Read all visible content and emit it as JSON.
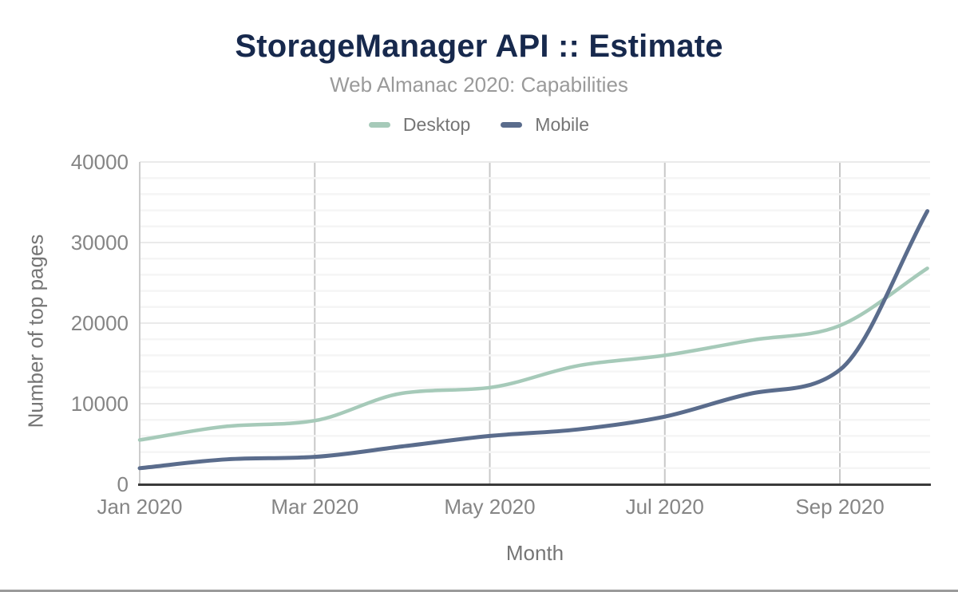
{
  "chart_data": {
    "type": "line",
    "title": "StorageManager API :: Estimate",
    "subtitle": "Web Almanac 2020: Capabilities",
    "xlabel": "Month",
    "ylabel": "Number of top pages",
    "x": [
      "Jan 2020",
      "Feb 2020",
      "Mar 2020",
      "Apr 2020",
      "May 2020",
      "Jun 2020",
      "Jul 2020",
      "Aug 2020",
      "Sep 2020",
      "Oct 2020"
    ],
    "x_tick_labels": [
      "Jan 2020",
      "Mar 2020",
      "May 2020",
      "Jul 2020",
      "Sep 2020"
    ],
    "x_tick_every": 2,
    "y_ticks": [
      0,
      10000,
      20000,
      30000,
      40000
    ],
    "ylim": [
      0,
      40000
    ],
    "grid": {
      "horizontal_minor_step": 2000,
      "horizontal_major_step": 10000,
      "vertical_at_labeled_ticks": true
    },
    "legend_position": "top",
    "series": [
      {
        "name": "Desktop",
        "color": "#a6cab9",
        "values": [
          5500,
          7200,
          7900,
          11300,
          12000,
          14700,
          16000,
          17900,
          19700,
          26800
        ]
      },
      {
        "name": "Mobile",
        "color": "#5a6c8c",
        "values": [
          2000,
          3100,
          3400,
          4700,
          6000,
          6800,
          8400,
          11300,
          14200,
          33900
        ]
      }
    ]
  },
  "style": {
    "title_color": "#17294d",
    "subtitle_color": "#9a9a9a",
    "legend_text_color": "#757575",
    "axis_title_color": "#757575",
    "tick_label_color": "#858585",
    "x_axis_line_color": "#3a3a3a",
    "y_axis_line_color": "#cccccc",
    "vertical_gridline_color": "#c8c8c8",
    "major_gridline_color": "#eaeaea",
    "minor_gridline_color": "#f5f5f5",
    "bottom_rule_color": "#9b9b9b",
    "background": "#ffffff"
  }
}
